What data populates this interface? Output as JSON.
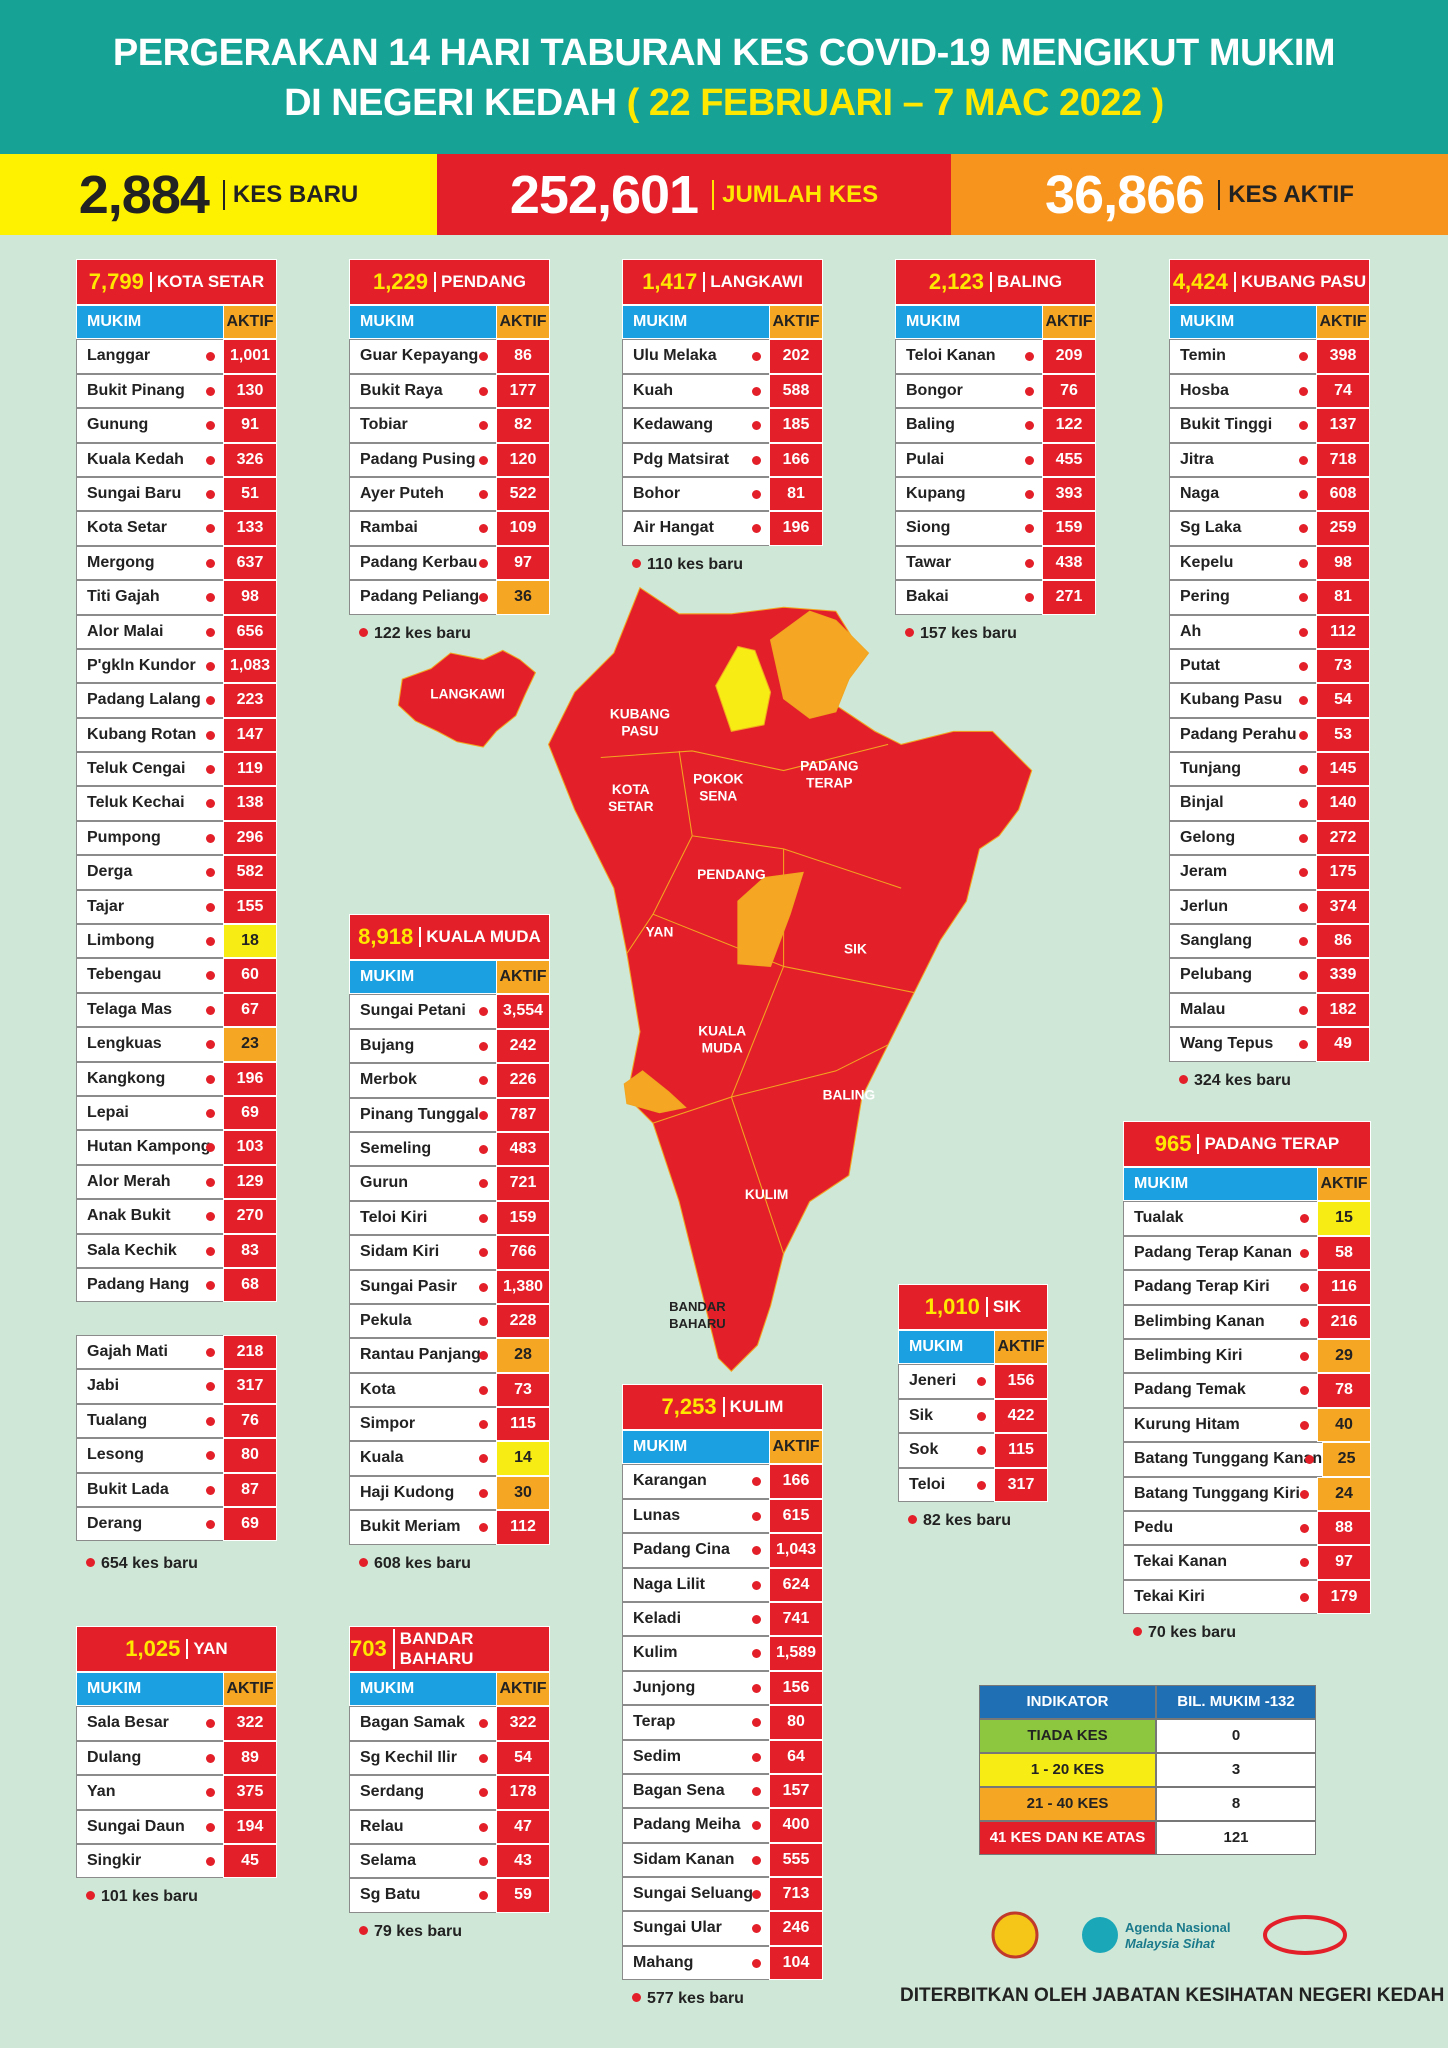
{
  "header": {
    "title_line1": "PERGERAKAN 14 HARI TABURAN KES COVID-19 MENGIKUT MUKIM",
    "title_line2": "DI NEGERI KEDAH",
    "title_dates": "( 22 FEBRUARI – 7 MAC 2022 )"
  },
  "stats": [
    {
      "value": "2,884",
      "label": "KES BARU"
    },
    {
      "value": "252,601",
      "label": "JUMLAH KES"
    },
    {
      "value": "36,866",
      "label": "KES AKTIF"
    }
  ],
  "table_headers": [
    "MUKIM",
    "AKTIF"
  ],
  "districts": [
    {
      "total": "7,799",
      "name": "KOTA SETAR",
      "rows": [
        [
          "Langgar",
          "1,001"
        ],
        [
          "Bukit Pinang",
          "130"
        ],
        [
          "Gunung",
          "91"
        ],
        [
          "Kuala Kedah",
          "326"
        ],
        [
          "Sungai Baru",
          "51"
        ],
        [
          "Kota Setar",
          "133"
        ],
        [
          "Mergong",
          "637"
        ],
        [
          "Titi Gajah",
          "98"
        ],
        [
          "Alor Malai",
          "656"
        ],
        [
          "P'gkln Kundor",
          "1,083"
        ],
        [
          "Padang Lalang",
          "223"
        ],
        [
          "Kubang Rotan",
          "147"
        ],
        [
          "Teluk Cengai",
          "119"
        ],
        [
          "Teluk Kechai",
          "138"
        ],
        [
          "Pumpong",
          "296"
        ],
        [
          "Derga",
          "582"
        ],
        [
          "Tajar",
          "155"
        ],
        [
          "Limbong",
          "18"
        ],
        [
          "Tebengau",
          "60"
        ],
        [
          "Telaga Mas",
          "67"
        ],
        [
          "Lengkuas",
          "23"
        ],
        [
          "Kangkong",
          "196"
        ],
        [
          "Lepai",
          "69"
        ],
        [
          "Hutan Kampong",
          "103"
        ],
        [
          "Alor Merah",
          "129"
        ],
        [
          "Anak Bukit",
          "270"
        ],
        [
          "Sala Kechik",
          "83"
        ],
        [
          "Padang Hang",
          "68"
        ]
      ],
      "rows_2": [
        [
          "Gajah Mati",
          "218"
        ],
        [
          "Jabi",
          "317"
        ],
        [
          "Tualang",
          "76"
        ],
        [
          "Lesong",
          "80"
        ],
        [
          "Bukit Lada",
          "87"
        ],
        [
          "Derang",
          "69"
        ]
      ],
      "new_cases": "654 kes baru"
    },
    {
      "total": "1,229",
      "name": "PENDANG",
      "rows": [
        [
          "Guar Kepayang",
          "86"
        ],
        [
          "Bukit Raya",
          "177"
        ],
        [
          "Tobiar",
          "82"
        ],
        [
          "Padang Pusing",
          "120"
        ],
        [
          "Ayer Puteh",
          "522"
        ],
        [
          "Rambai",
          "109"
        ],
        [
          "Padang Kerbau",
          "97"
        ],
        [
          "Padang Peliang",
          "36"
        ]
      ],
      "new_cases": "122 kes baru"
    },
    {
      "total": "1,417",
      "name": "LANGKAWI",
      "rows": [
        [
          "Ulu Melaka",
          "202"
        ],
        [
          "Kuah",
          "588"
        ],
        [
          "Kedawang",
          "185"
        ],
        [
          "Pdg Matsirat",
          "166"
        ],
        [
          "Bohor",
          "81"
        ],
        [
          "Air Hangat",
          "196"
        ]
      ],
      "new_cases": "110 kes baru"
    },
    {
      "total": "2,123",
      "name": "BALING",
      "rows": [
        [
          "Teloi Kanan",
          "209"
        ],
        [
          "Bongor",
          "76"
        ],
        [
          "Baling",
          "122"
        ],
        [
          "Pulai",
          "455"
        ],
        [
          "Kupang",
          "393"
        ],
        [
          "Siong",
          "159"
        ],
        [
          "Tawar",
          "438"
        ],
        [
          "Bakai",
          "271"
        ]
      ],
      "new_cases": "157 kes baru"
    },
    {
      "total": "4,424",
      "name": "KUBANG PASU",
      "rows": [
        [
          "Temin",
          "398"
        ],
        [
          "Hosba",
          "74"
        ],
        [
          "Bukit Tinggi",
          "137"
        ],
        [
          "Jitra",
          "718"
        ],
        [
          "Naga",
          "608"
        ],
        [
          "Sg Laka",
          "259"
        ],
        [
          "Kepelu",
          "98"
        ],
        [
          "Pering",
          "81"
        ],
        [
          "Ah",
          "112"
        ],
        [
          "Putat",
          "73"
        ],
        [
          "Kubang Pasu",
          "54"
        ],
        [
          "Padang Perahu",
          "53"
        ],
        [
          "Tunjang",
          "145"
        ],
        [
          "Binjal",
          "140"
        ],
        [
          "Gelong",
          "272"
        ],
        [
          "Jeram",
          "175"
        ],
        [
          "Jerlun",
          "374"
        ],
        [
          "Sanglang",
          "86"
        ],
        [
          "Pelubang",
          "339"
        ],
        [
          "Malau",
          "182"
        ],
        [
          "Wang Tepus",
          "49"
        ]
      ],
      "new_cases": "324 kes baru"
    },
    {
      "total": "8,918",
      "name": "KUALA MUDA",
      "rows": [
        [
          "Sungai Petani",
          "3,554"
        ],
        [
          "Bujang",
          "242"
        ],
        [
          "Merbok",
          "226"
        ],
        [
          "Pinang Tunggal",
          "787"
        ],
        [
          "Semeling",
          "483"
        ],
        [
          "Gurun",
          "721"
        ],
        [
          "Teloi Kiri",
          "159"
        ],
        [
          "Sidam Kiri",
          "766"
        ],
        [
          "Sungai Pasir",
          "1,380"
        ],
        [
          "Pekula",
          "228"
        ],
        [
          "Rantau Panjang",
          "28"
        ],
        [
          "Kota",
          "73"
        ],
        [
          "Simpor",
          "115"
        ],
        [
          "Kuala",
          "14"
        ],
        [
          "Haji Kudong",
          "30"
        ],
        [
          "Bukit Meriam",
          "112"
        ]
      ],
      "new_cases": "608 kes baru"
    },
    {
      "total": "965",
      "name": "PADANG TERAP",
      "rows": [
        [
          "Tualak",
          "15"
        ],
        [
          "Padang Terap Kanan",
          "58"
        ],
        [
          "Padang Terap Kiri",
          "116"
        ],
        [
          "Belimbing Kanan",
          "216"
        ],
        [
          "Belimbing Kiri",
          "29"
        ],
        [
          "Padang Temak",
          "78"
        ],
        [
          "Kurung Hitam",
          "40"
        ],
        [
          "Batang Tunggang Kanan",
          "25"
        ],
        [
          "Batang Tunggang Kiri",
          "24"
        ],
        [
          "Pedu",
          "88"
        ],
        [
          "Tekai Kanan",
          "97"
        ],
        [
          "Tekai Kiri",
          "179"
        ]
      ],
      "new_cases": "70 kes baru"
    },
    {
      "total": "1,010",
      "name": "SIK",
      "rows": [
        [
          "Jeneri",
          "156"
        ],
        [
          "Sik",
          "422"
        ],
        [
          "Sok",
          "115"
        ],
        [
          "Teloi",
          "317"
        ]
      ],
      "new_cases": "82 kes baru"
    },
    {
      "total": "7,253",
      "name": "KULIM",
      "rows": [
        [
          "Karangan",
          "166"
        ],
        [
          "Lunas",
          "615"
        ],
        [
          "Padang Cina",
          "1,043"
        ],
        [
          "Naga Lilit",
          "624"
        ],
        [
          "Keladi",
          "741"
        ],
        [
          "Kulim",
          "1,589"
        ],
        [
          "Junjong",
          "156"
        ],
        [
          "Terap",
          "80"
        ],
        [
          "Sedim",
          "64"
        ],
        [
          "Bagan Sena",
          "157"
        ],
        [
          "Padang Meiha",
          "400"
        ],
        [
          "Sidam Kanan",
          "555"
        ],
        [
          "Sungai Seluang",
          "713"
        ],
        [
          "Sungai Ular",
          "246"
        ],
        [
          "Mahang",
          "104"
        ]
      ],
      "new_cases": "577 kes baru"
    },
    {
      "total": "1,025",
      "name": "YAN",
      "rows": [
        [
          "Sala Besar",
          "322"
        ],
        [
          "Dulang",
          "89"
        ],
        [
          "Yan",
          "375"
        ],
        [
          "Sungai Daun",
          "194"
        ],
        [
          "Singkir",
          "45"
        ]
      ],
      "new_cases": "101 kes baru"
    },
    {
      "total": "703",
      "name": "BANDAR BAHARU",
      "rows": [
        [
          "Bagan Samak",
          "322"
        ],
        [
          "Sg Kechil Ilir",
          "54"
        ],
        [
          "Serdang",
          "178"
        ],
        [
          "Relau",
          "47"
        ],
        [
          "Selama",
          "43"
        ],
        [
          "Sg Batu",
          "59"
        ]
      ],
      "new_cases": "79 kes baru"
    }
  ],
  "map": {
    "labels": [
      [
        "LANGKAWI"
      ],
      [
        "KUBANG",
        "PASU"
      ],
      [
        "KOTA",
        "SETAR"
      ],
      [
        "POKOK",
        "SENA"
      ],
      [
        "PADANG",
        "TERAP"
      ],
      [
        "PENDANG"
      ],
      [
        "YAN"
      ],
      [
        "SIK"
      ],
      [
        "KUALA",
        "MUDA"
      ],
      [
        "BALING"
      ],
      [
        "KULIM"
      ],
      [
        "BANDAR",
        "BAHARU"
      ]
    ]
  },
  "legend": {
    "headers": [
      "INDIKATOR",
      "BIL. MUKIM -132"
    ],
    "rows": [
      [
        "TIADA KES",
        "0"
      ],
      [
        "1 - 20 KES",
        "3"
      ],
      [
        "21 - 40 KES",
        "8"
      ],
      [
        "41 KES DAN KE ATAS",
        "121"
      ]
    ]
  },
  "logos": {
    "agenda_line1": "Agenda Nasional",
    "agenda_line2": "Malaysia Sihat"
  },
  "footer": "DITERBITKAN OLEH JABATAN KESIHATAN NEGERI KEDAH"
}
